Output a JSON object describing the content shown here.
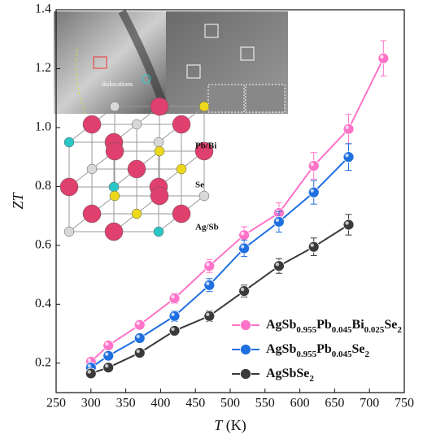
{
  "chart_data": {
    "type": "line",
    "x_label": "T (K)",
    "y_label": "ZT",
    "x": [
      300,
      325,
      370,
      420,
      470,
      520,
      570,
      620,
      670,
      720
    ],
    "series": [
      {
        "name": "AgSb0.955Pb0.045Bi0.025Se2",
        "color": "#ff73c8",
        "values": [
          0.205,
          0.26,
          0.33,
          0.42,
          0.53,
          0.635,
          0.71,
          0.87,
          0.995,
          1.235
        ],
        "errors": [
          0.01,
          0.012,
          0.015,
          0.018,
          0.022,
          0.028,
          0.035,
          0.045,
          0.05,
          0.06
        ]
      },
      {
        "name": "AgSb0.955Pb0.045Se2",
        "color": "#1f6fe0",
        "values": [
          0.185,
          0.225,
          0.285,
          0.36,
          0.465,
          0.59,
          0.68,
          0.78,
          0.9,
          null
        ],
        "errors": [
          0.01,
          0.012,
          0.015,
          0.018,
          0.022,
          0.028,
          0.035,
          0.04,
          0.045,
          null
        ]
      },
      {
        "name": "AgSbSe2",
        "color": "#3a3a3a",
        "values": [
          0.165,
          0.185,
          0.235,
          0.31,
          0.36,
          0.445,
          0.53,
          0.595,
          0.67,
          null
        ],
        "errors": [
          0.01,
          0.01,
          0.012,
          0.015,
          0.018,
          0.02,
          0.025,
          0.03,
          0.035,
          null
        ]
      }
    ],
    "xlim": [
      250,
      750
    ],
    "xticks": [
      250,
      300,
      350,
      400,
      450,
      500,
      550,
      600,
      650,
      700,
      750
    ],
    "ylim": [
      0.1,
      1.4
    ],
    "yticks": [
      0.2,
      0.4,
      0.6,
      0.8,
      {
        "value": 1,
        "label": "1.0"
      },
      1.2,
      1.4
    ],
    "legend": "lower right",
    "inset_labels": [
      "Pb/Bi",
      "Se",
      "Ag/Sb"
    ],
    "inset_annotation": "dislocations"
  }
}
